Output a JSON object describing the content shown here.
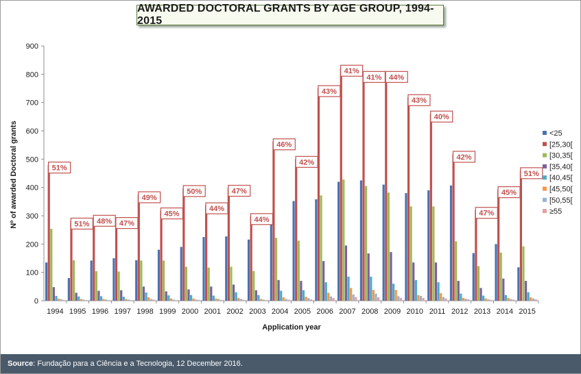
{
  "title": "AWARDED DOCTORAL GRANTS BY AGE GROUP, 1994-2015",
  "source_label": "Source",
  "source_text": ": Fundação para a Ciência e a Tecnologia, 12 December 2016.",
  "chart_data": {
    "type": "bar",
    "xlabel": "Application year",
    "ylabel": "Nº of awarded Doctoral grants",
    "ylim": [
      0,
      900
    ],
    "yticks": [
      0,
      100,
      200,
      300,
      400,
      500,
      600,
      700,
      800,
      900
    ],
    "grid": false,
    "legend_position": "right",
    "categories": [
      "1994",
      "1995",
      "1996",
      "1997",
      "1998",
      "1999",
      "2000",
      "2001",
      "2002",
      "2003",
      "2004",
      "2005",
      "2006",
      "2007",
      "2008",
      "2009",
      "2010",
      "2011",
      "2012",
      "2013",
      "2014",
      "2015"
    ],
    "series": [
      {
        "name": "<25",
        "color": "#4a72b0",
        "values": [
          135,
          80,
          142,
          150,
          143,
          180,
          190,
          225,
          227,
          216,
          305,
          352,
          358,
          420,
          425,
          410,
          380,
          390,
          407,
          168,
          200,
          118
        ]
      },
      {
        "name": "[25,30[",
        "color": "#c0504d",
        "values": [
          480,
          282,
          292,
          284,
          375,
          318,
          397,
          336,
          398,
          298,
          562,
          500,
          750,
          822,
          800,
          800,
          718,
          660,
          518,
          320,
          393,
          460
        ]
      },
      {
        "name": "[30,35[",
        "color": "#9bbb59",
        "values": [
          254,
          143,
          104,
          103,
          142,
          142,
          120,
          117,
          120,
          105,
          222,
          212,
          372,
          428,
          405,
          382,
          333,
          333,
          210,
          122,
          170,
          192
        ]
      },
      {
        "name": "[35,40[",
        "color": "#7a5fa0",
        "values": [
          48,
          28,
          35,
          37,
          50,
          33,
          40,
          50,
          57,
          37,
          73,
          70,
          140,
          195,
          167,
          172,
          135,
          135,
          70,
          45,
          78,
          70
        ]
      },
      {
        "name": "[40,45[",
        "color": "#4bacc6",
        "values": [
          17,
          15,
          16,
          14,
          29,
          19,
          20,
          18,
          30,
          20,
          35,
          37,
          65,
          85,
          85,
          60,
          73,
          65,
          25,
          18,
          20,
          30
        ]
      },
      {
        "name": "[45,50[",
        "color": "#f79646",
        "values": [
          7,
          6,
          6,
          6,
          12,
          8,
          8,
          8,
          10,
          6,
          12,
          14,
          28,
          45,
          38,
          38,
          20,
          27,
          10,
          8,
          10,
          12
        ]
      },
      {
        "name": "[50,55[",
        "color": "#95b3d7",
        "values": [
          5,
          4,
          4,
          4,
          6,
          4,
          4,
          6,
          6,
          4,
          6,
          9,
          15,
          22,
          25,
          16,
          17,
          13,
          7,
          5,
          6,
          8
        ]
      },
      {
        "name": "≥55",
        "color": "#e6a0a0",
        "values": [
          3,
          2,
          2,
          2,
          4,
          2,
          3,
          3,
          3,
          2,
          4,
          5,
          10,
          13,
          12,
          10,
          10,
          8,
          5,
          3,
          4,
          5
        ]
      }
    ],
    "annotations": [
      "51%",
      "51%",
      "48%",
      "47%",
      "49%",
      "45%",
      "50%",
      "44%",
      "47%",
      "44%",
      "46%",
      "42%",
      "43%",
      "41%",
      "41%",
      "44%",
      "43%",
      "40%",
      "42%",
      "47%",
      "45%",
      "51%"
    ]
  }
}
